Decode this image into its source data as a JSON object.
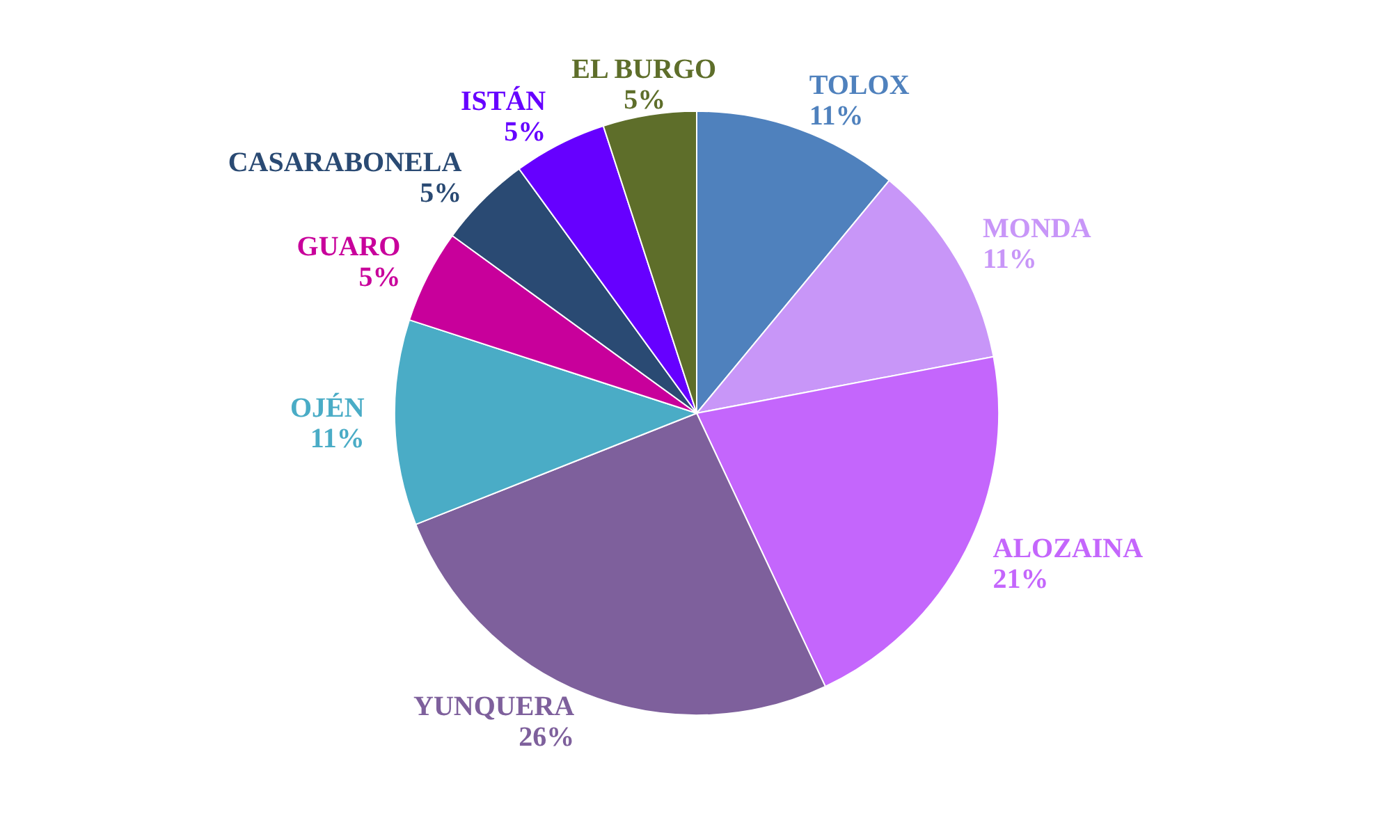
{
  "chart_data": {
    "type": "pie",
    "categories": [
      "TOLOX",
      "MONDA",
      "ALOZAINA",
      "YUNQUERA",
      "OJÉN",
      "GUARO",
      "CASARABONELA",
      "ISTÁN",
      "EL BURGO"
    ],
    "values": [
      11,
      11,
      21,
      26,
      11,
      5,
      5,
      5,
      5
    ],
    "value_labels": [
      "11%",
      "11%",
      "21%",
      "26%",
      "11%",
      "5%",
      "5%",
      "5%",
      "5%"
    ],
    "colors": [
      "#4f81bd",
      "#c896f8",
      "#c466fc",
      "#7e609c",
      "#4aacc6",
      "#c8009b",
      "#2a4a73",
      "#6600ff",
      "#5e6e2a"
    ],
    "legend": false
  }
}
